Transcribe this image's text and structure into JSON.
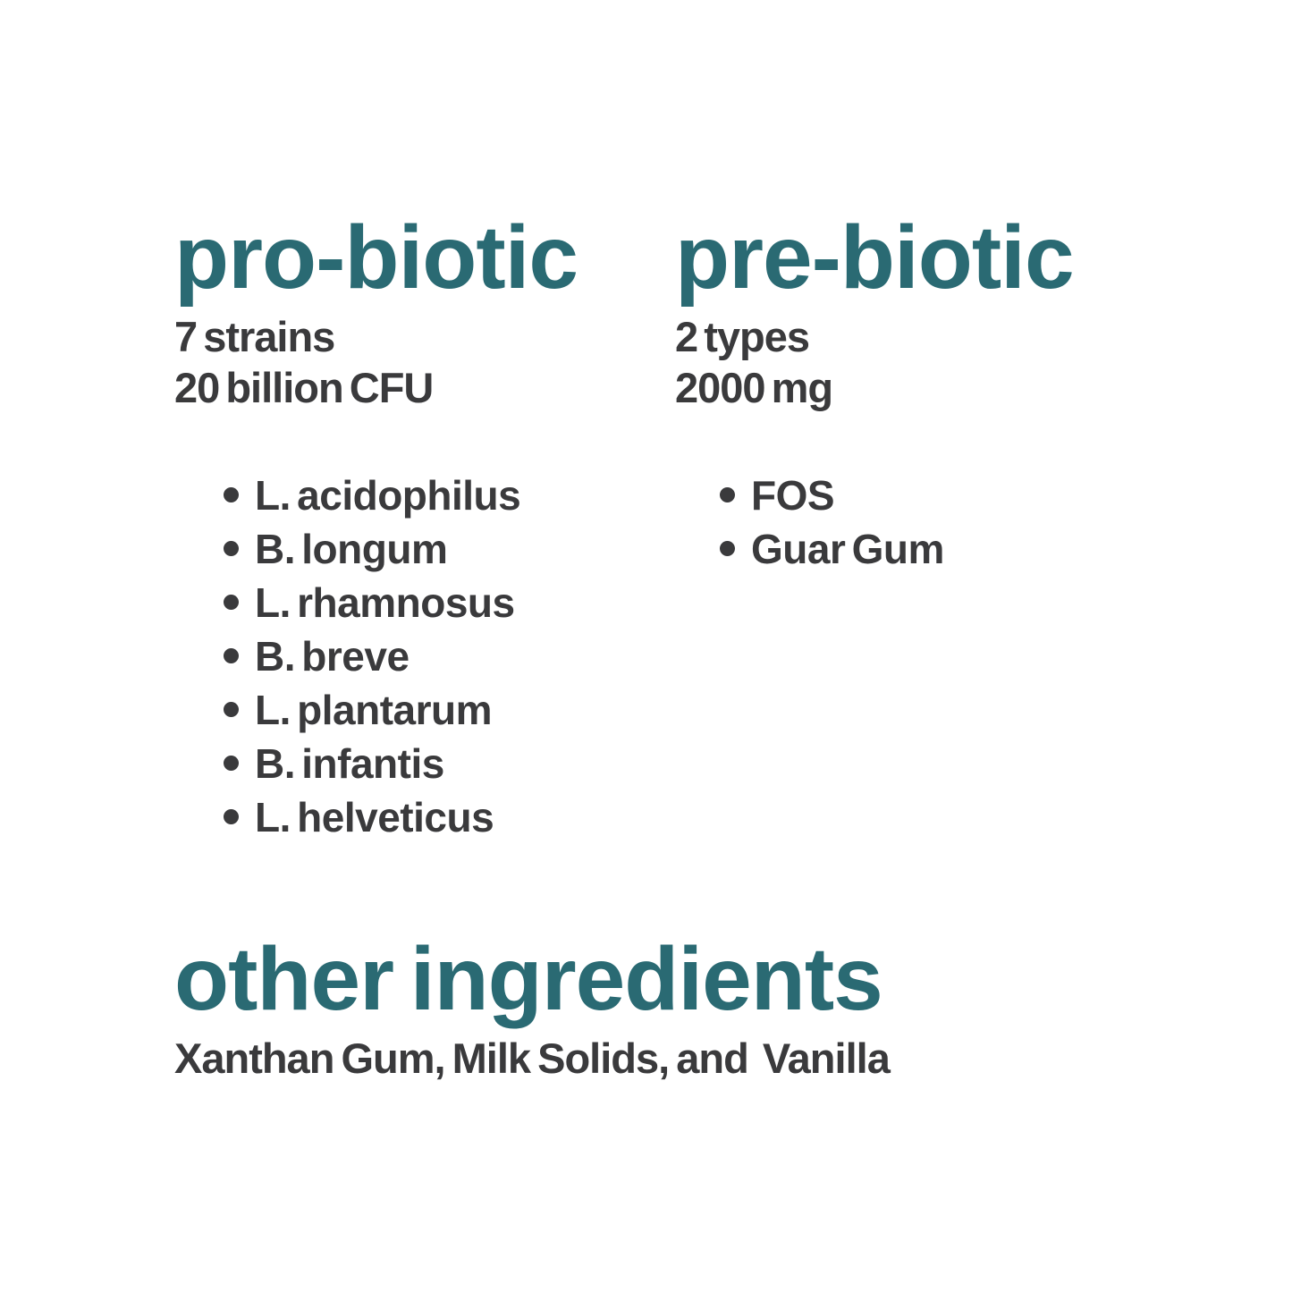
{
  "page": {
    "background_color": "#ffffff",
    "accent_color": "#2A6A73",
    "text_color": "#3A3A3C"
  },
  "probiotic": {
    "title": "pro-biotic",
    "stats": [
      "7 strains",
      "20 billion CFU"
    ],
    "items": [
      "L. acidophilus",
      "B. longum",
      "L. rhamnosus",
      "B. breve",
      "L. plantarum",
      "B. infantis",
      "L. helveticus"
    ]
  },
  "prebiotic": {
    "title": "pre-biotic",
    "stats": [
      "2 types",
      "2000 mg"
    ],
    "items": [
      "FOS",
      "Guar Gum"
    ]
  },
  "other_ingredients": {
    "title": "other ingredients",
    "text": "Xanthan Gum, Milk Solids, and  Vanilla"
  }
}
